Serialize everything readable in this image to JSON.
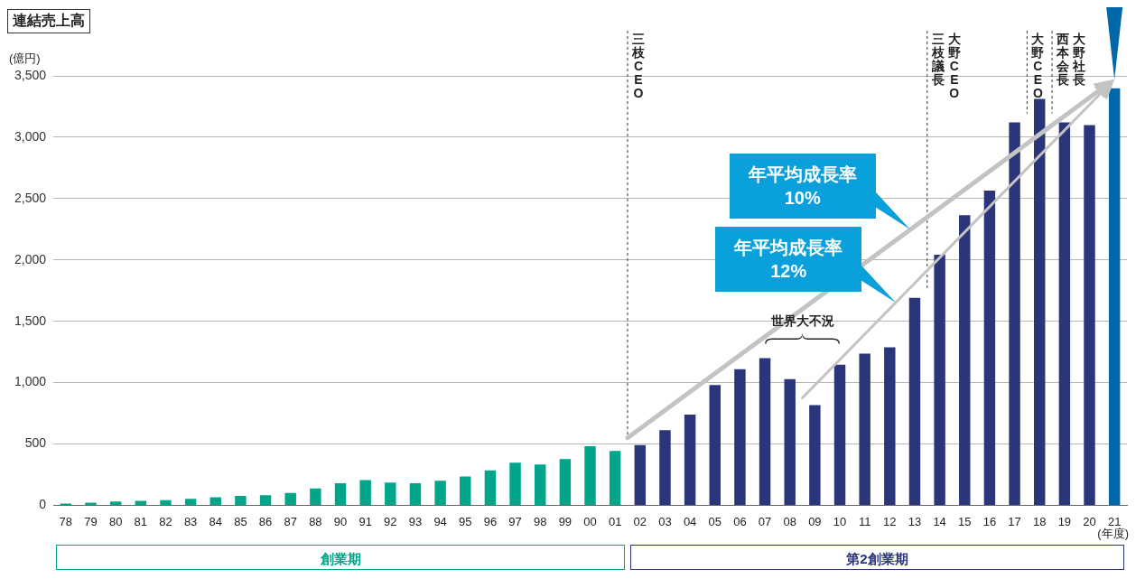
{
  "chart_data": {
    "type": "bar",
    "title": "連結売上高",
    "ylabel": "(億円)",
    "xlabel": "(年度)",
    "categories": [
      "78",
      "79",
      "80",
      "81",
      "82",
      "83",
      "84",
      "85",
      "86",
      "87",
      "88",
      "90",
      "91",
      "92",
      "93",
      "94",
      "95",
      "96",
      "97",
      "98",
      "99",
      "00",
      "01",
      "02",
      "03",
      "04",
      "05",
      "06",
      "07",
      "08",
      "09",
      "10",
      "11",
      "12",
      "13",
      "14",
      "15",
      "16",
      "17",
      "18",
      "19",
      "20",
      "21"
    ],
    "series": [
      {
        "values": [
          14,
          22,
          30,
          36,
          41,
          52,
          66,
          77,
          82,
          101,
          137,
          180,
          205,
          186,
          180,
          199,
          235,
          284,
          347,
          333,
          377,
          481,
          443,
          491,
          612,
          739,
          980,
          1110,
          1199,
          1028,
          817,
          1146,
          1236,
          1287,
          1691,
          2042,
          2365,
          2565,
          3121,
          3312,
          3121,
          3098,
          3399
        ],
        "colors": [
          "#00a58a",
          "#00a58a",
          "#00a58a",
          "#00a58a",
          "#00a58a",
          "#00a58a",
          "#00a58a",
          "#00a58a",
          "#00a58a",
          "#00a58a",
          "#00a58a",
          "#00a58a",
          "#00a58a",
          "#00a58a",
          "#00a58a",
          "#00a58a",
          "#00a58a",
          "#00a58a",
          "#00a58a",
          "#00a58a",
          "#00a58a",
          "#00a58a",
          "#00a58a",
          "#2b357a",
          "#2b357a",
          "#2b357a",
          "#2b357a",
          "#2b357a",
          "#2b357a",
          "#2b357a",
          "#2b357a",
          "#2b357a",
          "#2b357a",
          "#2b357a",
          "#2b357a",
          "#2b357a",
          "#2b357a",
          "#2b357a",
          "#2b357a",
          "#2b357a",
          "#2b357a",
          "#2b357a",
          "#0068a8"
        ]
      }
    ],
    "ylim": [
      0,
      3500
    ],
    "yticks": [
      0,
      500,
      {
        "value": 1000,
        "label": "1,000"
      },
      {
        "value": 1500,
        "label": "1,500"
      },
      {
        "value": 2000,
        "label": "2,000"
      },
      {
        "value": 2500,
        "label": "2,500"
      },
      {
        "value": 3000,
        "label": "3,000"
      },
      {
        "value": 3500,
        "label": "3,500"
      }
    ],
    "grid": "y",
    "legend": false,
    "ref_lines": [
      {
        "axis": "x",
        "value": "02",
        "label": "三枝CEO"
      },
      {
        "axis": "x",
        "value": "14",
        "label": "大野CEO三枝議長"
      },
      {
        "axis": "x",
        "value": "18",
        "label": "大野CEO"
      },
      {
        "axis": "x",
        "value": "19",
        "label": "大野社長西本会長"
      }
    ],
    "annotations": [
      "世界大不況",
      "年平均成長率\n10%",
      "年平均成長率\n12%",
      "創業期",
      "第2創業期"
    ]
  }
}
